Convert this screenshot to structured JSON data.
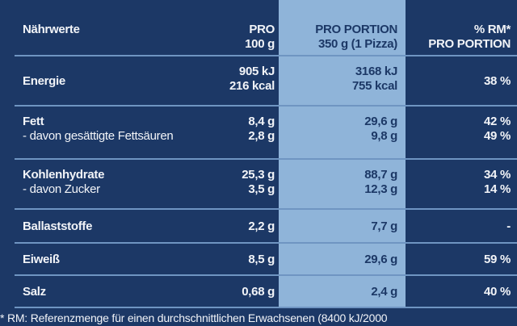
{
  "table": {
    "header": [
      [
        "Nährwerte"
      ],
      [
        "PRO",
        "100 g"
      ],
      [
        "PRO PORTION",
        "350 g (1 Pizza)"
      ],
      [
        "% RM*",
        "PRO PORTION"
      ]
    ],
    "rows": [
      [
        [
          "Energie"
        ],
        [
          "905 kJ",
          "216 kcal"
        ],
        [
          "3168 kJ",
          "755 kcal"
        ],
        [
          "38 %"
        ]
      ],
      [
        [
          "Fett",
          "- davon gesättigte Fettsäuren"
        ],
        [
          "8,4 g",
          "2,8 g"
        ],
        [
          "29,6 g",
          "9,8 g"
        ],
        [
          "42 %",
          "49 %"
        ]
      ],
      [
        [
          "Kohlenhydrate",
          "- davon Zucker"
        ],
        [
          "25,3 g",
          "3,5 g"
        ],
        [
          "88,7 g",
          "12,3 g"
        ],
        [
          "34 %",
          "14 %"
        ]
      ],
      [
        [
          "Ballaststoffe"
        ],
        [
          "2,2 g"
        ],
        [
          "7,7 g"
        ],
        [
          "-"
        ]
      ],
      [
        [
          "Eiweiß"
        ],
        [
          "8,5 g"
        ],
        [
          "29,6 g"
        ],
        [
          "59 %"
        ]
      ],
      [
        [
          "Salz"
        ],
        [
          "0,68 g"
        ],
        [
          "2,4 g"
        ],
        [
          "40 %"
        ]
      ]
    ],
    "footnote": "* RM: Referenzmenge für einen durchschnittlichen Erwachsenen (8400 kJ/2000"
  }
}
